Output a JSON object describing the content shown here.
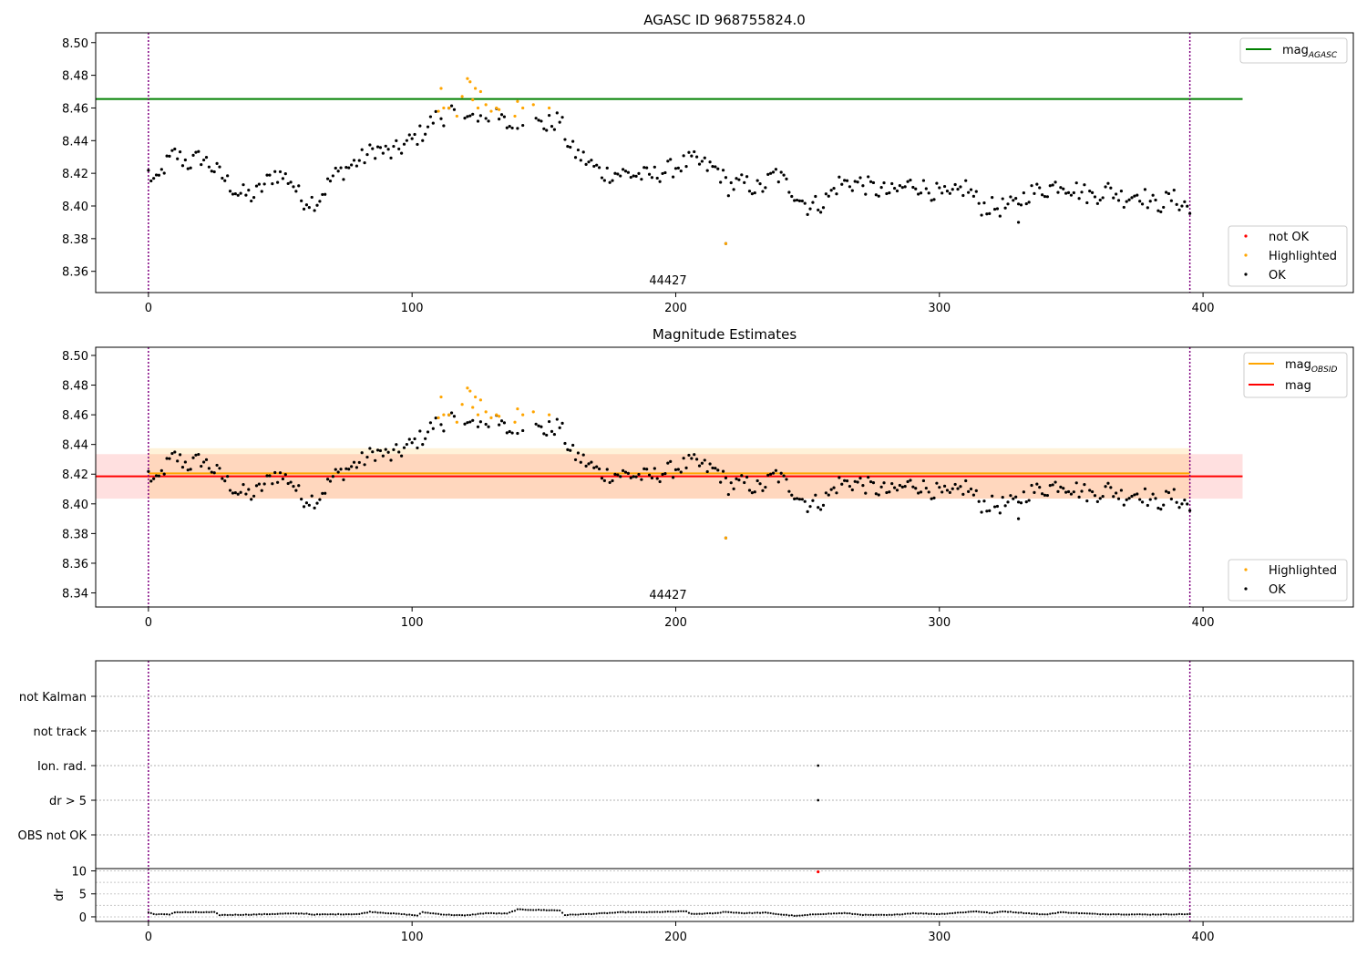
{
  "chart_data": [
    {
      "type": "scatter",
      "title": "AGASC ID 968755824.0",
      "annotation": "44427",
      "xlim": [
        -20,
        457
      ],
      "ylim": [
        8.347,
        8.506
      ],
      "xticks": [
        0,
        100,
        200,
        300,
        400
      ],
      "yticks": [
        8.36,
        8.38,
        8.4,
        8.42,
        8.44,
        8.46,
        8.48,
        8.5
      ],
      "ytick_decimals": 2,
      "vlines": [
        0,
        395
      ],
      "hlines": [
        {
          "name": "mag_AGASC",
          "y": 8.4655,
          "x_end": 415,
          "color": "#008000"
        }
      ],
      "legend_top": [
        {
          "label": "mag",
          "sub": "AGASC",
          "color": "#008000",
          "kind": "line"
        }
      ],
      "legend_bottom": [
        {
          "label": "not OK",
          "color": "#ff0000",
          "kind": "dot"
        },
        {
          "label": "Highlighted",
          "color": "#ffa500",
          "kind": "dot"
        },
        {
          "label": "OK",
          "color": "#000000",
          "kind": "dot"
        }
      ],
      "series": [
        {
          "name": "OK",
          "color": "#000000",
          "anchors": [
            [
              0,
              8.42
            ],
            [
              3,
              8.413
            ],
            [
              6,
              8.424
            ],
            [
              10,
              8.432
            ],
            [
              15,
              8.426
            ],
            [
              20,
              8.43
            ],
            [
              28,
              8.418
            ],
            [
              34,
              8.408
            ],
            [
              40,
              8.406
            ],
            [
              48,
              8.42
            ],
            [
              54,
              8.416
            ],
            [
              58,
              8.404
            ],
            [
              64,
              8.403
            ],
            [
              70,
              8.418
            ],
            [
              76,
              8.424
            ],
            [
              82,
              8.43
            ],
            [
              86,
              8.435
            ],
            [
              92,
              8.432
            ],
            [
              98,
              8.438
            ],
            [
              104,
              8.445
            ],
            [
              108,
              8.453
            ],
            [
              114,
              8.456
            ],
            [
              120,
              8.452
            ],
            [
              126,
              8.456
            ],
            [
              132,
              8.454
            ],
            [
              138,
              8.448
            ],
            [
              144,
              8.452
            ],
            [
              150,
              8.449
            ],
            [
              156,
              8.453
            ],
            [
              160,
              8.435
            ],
            [
              166,
              8.428
            ],
            [
              172,
              8.42
            ],
            [
              180,
              8.42
            ],
            [
              190,
              8.418
            ],
            [
              200,
              8.424
            ],
            [
              206,
              8.428
            ],
            [
              212,
              8.424
            ],
            [
              216,
              8.422
            ],
            [
              220,
              8.412
            ],
            [
              226,
              8.414
            ],
            [
              232,
              8.41
            ],
            [
              238,
              8.42
            ],
            [
              244,
              8.41
            ],
            [
              250,
              8.4
            ],
            [
              256,
              8.402
            ],
            [
              262,
              8.414
            ],
            [
              270,
              8.414
            ],
            [
              276,
              8.41
            ],
            [
              282,
              8.408
            ],
            [
              290,
              8.414
            ],
            [
              296,
              8.41
            ],
            [
              304,
              8.405
            ],
            [
              310,
              8.412
            ],
            [
              316,
              8.4
            ],
            [
              322,
              8.399
            ],
            [
              328,
              8.4
            ],
            [
              334,
              8.408
            ],
            [
              340,
              8.41
            ],
            [
              346,
              8.414
            ],
            [
              352,
              8.41
            ],
            [
              358,
              8.406
            ],
            [
              364,
              8.41
            ],
            [
              370,
              8.405
            ],
            [
              376,
              8.408
            ],
            [
              382,
              8.4
            ],
            [
              388,
              8.405
            ],
            [
              394,
              8.4
            ],
            [
              395,
              8.396
            ]
          ],
          "outliers": [
            [
              219,
              8.377
            ],
            [
              330,
              8.39
            ]
          ]
        },
        {
          "name": "Highlighted",
          "color": "#ffa500",
          "points": [
            [
              110,
              8.458
            ],
            [
              111,
              8.472
            ],
            [
              112,
              8.46
            ],
            [
              114,
              8.46
            ],
            [
              117,
              8.455
            ],
            [
              119,
              8.467
            ],
            [
              121,
              8.478
            ],
            [
              122,
              8.476
            ],
            [
              123,
              8.465
            ],
            [
              124,
              8.472
            ],
            [
              125,
              8.46
            ],
            [
              126,
              8.47
            ],
            [
              128,
              8.462
            ],
            [
              130,
              8.458
            ],
            [
              132,
              8.46
            ],
            [
              133,
              8.459
            ],
            [
              139,
              8.455
            ],
            [
              140,
              8.464
            ],
            [
              142,
              8.46
            ],
            [
              146,
              8.462
            ],
            [
              152,
              8.46
            ],
            [
              219,
              8.377
            ]
          ]
        }
      ]
    },
    {
      "type": "scatter",
      "title": "Magnitude Estimates",
      "annotation": "44427",
      "xlim": [
        -20,
        457
      ],
      "ylim": [
        8.3305,
        8.5055
      ],
      "xticks": [
        0,
        100,
        200,
        300,
        400
      ],
      "yticks": [
        8.34,
        8.36,
        8.38,
        8.4,
        8.42,
        8.44,
        8.46,
        8.48,
        8.5
      ],
      "ytick_decimals": 2,
      "vlines": [
        0,
        395
      ],
      "bands": [
        {
          "x0": -20,
          "x1": 415,
          "y0": 8.4035,
          "y1": 8.4335,
          "color": "#ff0000",
          "opacity": 0.12
        },
        {
          "x0": 0,
          "x1": 395,
          "y0": 8.4035,
          "y1": 8.4375,
          "color": "#ffa500",
          "opacity": 0.15
        }
      ],
      "hlines": [
        {
          "name": "mag_OBSID",
          "y": 8.4205,
          "x_start": 0,
          "x_end": 395,
          "color": "#ffa500"
        },
        {
          "name": "mag",
          "y": 8.4185,
          "x_start": -20,
          "x_end": 415,
          "color": "#ff0000"
        }
      ],
      "legend_top": [
        {
          "label": "mag",
          "sub": "OBSID",
          "color": "#ffa500",
          "kind": "line"
        },
        {
          "label": "mag",
          "sub": "",
          "color": "#ff0000",
          "kind": "line"
        }
      ],
      "legend_bottom": [
        {
          "label": "Highlighted",
          "color": "#ffa500",
          "kind": "dot"
        },
        {
          "label": "OK",
          "color": "#000000",
          "kind": "dot"
        }
      ]
    },
    {
      "type": "scatter",
      "categories": [
        "OBS not OK",
        "dr > 5",
        "Ion. rad.",
        "not track",
        "not Kalman"
      ],
      "flag_points": [
        {
          "x": 254,
          "category": "Ion. rad."
        },
        {
          "x": 254,
          "category": "dr > 5"
        }
      ],
      "vlines": [
        0,
        395
      ],
      "xlim": [
        -20,
        457
      ]
    },
    {
      "type": "scatter",
      "ylabel": "dr",
      "xlim": [
        -20,
        457
      ],
      "ylim": [
        -1,
        10.5
      ],
      "yticks": [
        0,
        5,
        10
      ],
      "xticks": [
        0,
        100,
        200,
        300,
        400
      ],
      "vlines": [
        0,
        395
      ],
      "red_point": [
        254,
        9.8
      ],
      "anchors": [
        [
          0,
          1.0
        ],
        [
          2,
          0.6
        ],
        [
          8,
          0.5
        ],
        [
          10,
          1.0
        ],
        [
          25,
          1.0
        ],
        [
          27,
          0.4
        ],
        [
          40,
          0.5
        ],
        [
          52,
          0.7
        ],
        [
          60,
          0.7
        ],
        [
          62,
          0.5
        ],
        [
          80,
          0.6
        ],
        [
          84,
          1.1
        ],
        [
          98,
          0.5
        ],
        [
          102,
          0.3
        ],
        [
          104,
          1.0
        ],
        [
          112,
          0.5
        ],
        [
          120,
          0.3
        ],
        [
          128,
          0.8
        ],
        [
          136,
          0.7
        ],
        [
          140,
          1.6
        ],
        [
          156,
          1.4
        ],
        [
          158,
          0.4
        ],
        [
          170,
          0.7
        ],
        [
          180,
          1.0
        ],
        [
          190,
          1.0
        ],
        [
          204,
          1.2
        ],
        [
          206,
          0.6
        ],
        [
          216,
          0.8
        ],
        [
          218,
          1.1
        ],
        [
          226,
          0.8
        ],
        [
          234,
          0.9
        ],
        [
          240,
          0.5
        ],
        [
          246,
          0.2
        ],
        [
          254,
          0.6
        ],
        [
          264,
          0.8
        ],
        [
          272,
          0.4
        ],
        [
          282,
          0.4
        ],
        [
          290,
          0.8
        ],
        [
          300,
          0.6
        ],
        [
          314,
          1.2
        ],
        [
          320,
          0.8
        ],
        [
          324,
          1.2
        ],
        [
          340,
          0.5
        ],
        [
          346,
          1.0
        ],
        [
          360,
          0.6
        ],
        [
          380,
          0.5
        ],
        [
          395,
          0.6
        ]
      ]
    }
  ]
}
